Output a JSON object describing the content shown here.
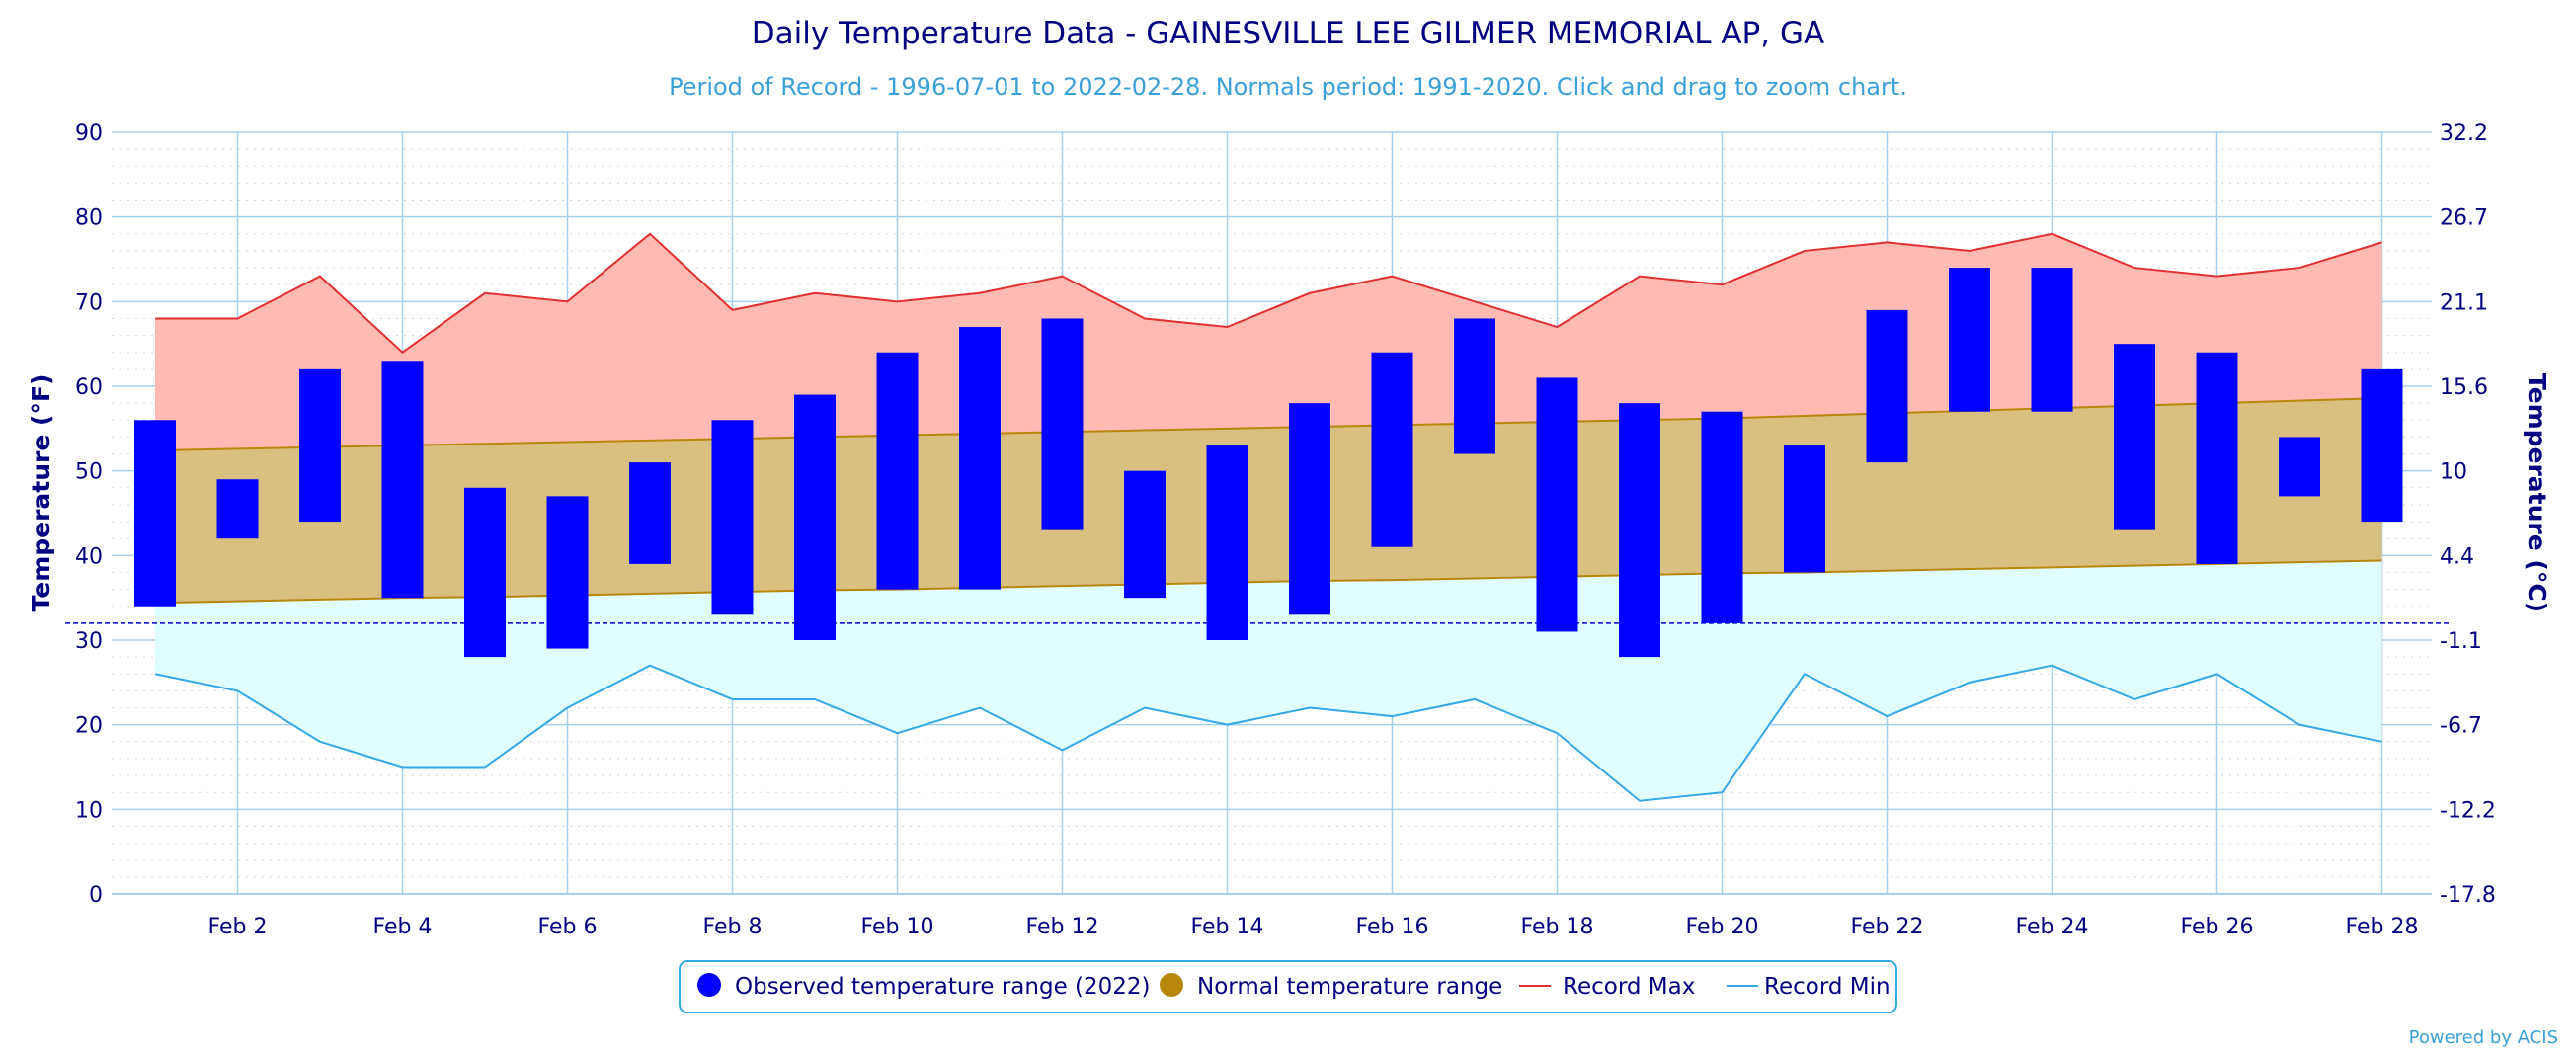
{
  "title": "Daily Temperature Data - GAINESVILLE LEE GILMER MEMORIAL AP, GA",
  "subtitle": "Period of Record - 1996-07-01 to 2022-02-28. Normals period: 1991-2020. Click and drag to zoom chart.",
  "credit": "Powered by ACIS",
  "colors": {
    "observed": "#0000ff",
    "normal_fill": "#d9bf80",
    "normal_line": "#b8860b",
    "record_max_line": "#e03030",
    "record_max_fill": "#ffbab4",
    "record_min_line": "#35a8e8",
    "record_min_fill": "#e0fefe",
    "grid": "#a7d0ec",
    "freezing": "#0000cc",
    "text": "#000080"
  },
  "chart_data": {
    "type": "bar",
    "xlabel": "",
    "ylabel": "Temperature (°F)",
    "ylabel_right": "Temperature (°C)",
    "ylim": [
      0,
      90
    ],
    "yticks": [
      "0",
      "10",
      "20",
      "30",
      "40",
      "50",
      "60",
      "70",
      "80",
      "90"
    ],
    "yticks_right": [
      "-17.8",
      "-12.2",
      "-6.7",
      "-1.1",
      "4.4",
      "10",
      "15.6",
      "21.1",
      "26.7",
      "32.2"
    ],
    "freezing_line": 32,
    "days": [
      1,
      2,
      3,
      4,
      5,
      6,
      7,
      8,
      9,
      10,
      11,
      12,
      13,
      14,
      15,
      16,
      17,
      18,
      19,
      20,
      21,
      22,
      23,
      24,
      25,
      26,
      27,
      28
    ],
    "xtick_labels": [
      "Feb 2",
      "Feb 4",
      "Feb 6",
      "Feb 8",
      "Feb 10",
      "Feb 12",
      "Feb 14",
      "Feb 16",
      "Feb 18",
      "Feb 20",
      "Feb 22",
      "Feb 24",
      "Feb 26",
      "Feb 28"
    ],
    "xtick_days": [
      2,
      4,
      6,
      8,
      10,
      12,
      14,
      16,
      18,
      20,
      22,
      24,
      26,
      28
    ],
    "grid": true,
    "legend_position": "bottom-center",
    "series": [
      {
        "name": "Observed temperature range (2022)",
        "kind": "range-bar",
        "low": [
          34,
          42,
          44,
          35,
          28,
          29,
          39,
          33,
          30,
          36,
          36,
          43,
          35,
          30,
          33,
          41,
          52,
          31,
          28,
          32,
          38,
          51,
          57,
          57,
          43,
          39,
          47,
          44
        ],
        "high": [
          56,
          49,
          62,
          63,
          48,
          47,
          51,
          56,
          59,
          64,
          67,
          68,
          50,
          53,
          58,
          64,
          68,
          61,
          58,
          57,
          53,
          69,
          74,
          74,
          65,
          64,
          54,
          62
        ]
      },
      {
        "name": "Normal temperature range",
        "kind": "range-area",
        "low": [
          34.4,
          34.6,
          34.8,
          35.0,
          35.1,
          35.3,
          35.5,
          35.7,
          35.9,
          36.0,
          36.2,
          36.4,
          36.6,
          36.8,
          37.0,
          37.1,
          37.3,
          37.5,
          37.7,
          37.9,
          38.0,
          38.2,
          38.4,
          38.6,
          38.8,
          39.0,
          39.2,
          39.4
        ],
        "high": [
          52.4,
          52.6,
          52.8,
          53.0,
          53.2,
          53.4,
          53.6,
          53.8,
          54.0,
          54.2,
          54.4,
          54.6,
          54.8,
          55.0,
          55.2,
          55.4,
          55.6,
          55.8,
          56.0,
          56.2,
          56.5,
          56.8,
          57.1,
          57.4,
          57.7,
          58.0,
          58.3,
          58.6
        ]
      },
      {
        "name": "Record Max",
        "kind": "line",
        "values": [
          68,
          68,
          73,
          64,
          71,
          70,
          78,
          69,
          71,
          70,
          71,
          73,
          68,
          67,
          71,
          73,
          70,
          67,
          73,
          72,
          76,
          77,
          76,
          78,
          74,
          73,
          74,
          77
        ]
      },
      {
        "name": "Record Min",
        "kind": "line",
        "values": [
          26,
          24,
          18,
          15,
          15,
          22,
          27,
          23,
          23,
          19,
          22,
          17,
          22,
          20,
          22,
          21,
          23,
          19,
          11,
          12,
          26,
          21,
          25,
          27,
          23,
          26,
          20,
          18
        ]
      }
    ]
  }
}
